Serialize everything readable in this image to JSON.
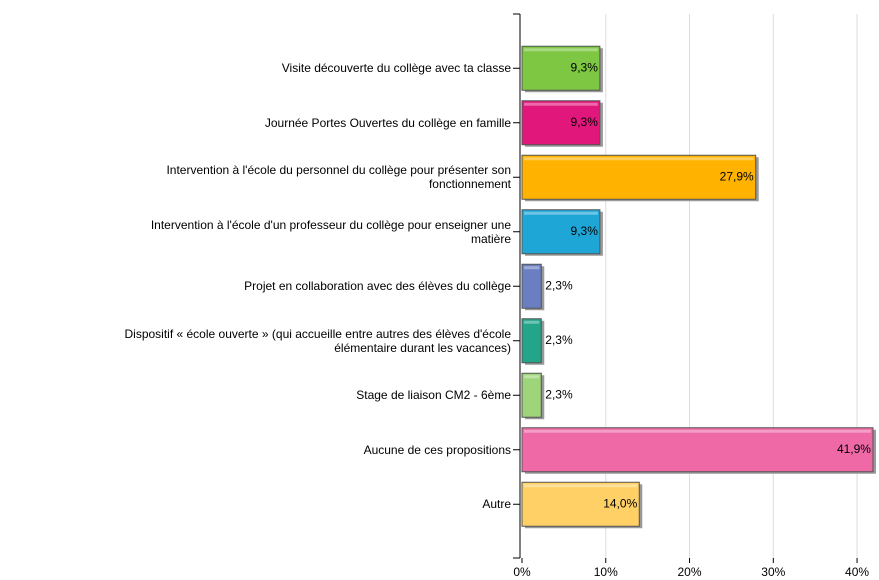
{
  "chart_data": {
    "type": "bar",
    "orientation": "horizontal",
    "categories": [
      "Visite découverte du collège avec ta classe",
      "Journée Portes Ouvertes du collège en famille",
      "Intervention à l'école du personnel du collège pour présenter son\nfonctionnement",
      "Intervention à l'école d'un professeur du collège pour enseigner une\nmatière",
      "Projet en collaboration avec des élèves du collège",
      "Dispositif « école ouverte » (qui  accueille entre autres des élèves d'école\nélémentaire durant les vacances)",
      "Stage de liaison CM2 - 6ème",
      "Aucune de ces propositions",
      "Autre"
    ],
    "values": [
      9.3,
      9.3,
      27.9,
      9.3,
      2.3,
      2.3,
      2.3,
      41.9,
      14.0
    ],
    "value_labels": [
      "9,3%",
      "9,3%",
      "27,9%",
      "9,3%",
      "2,3%",
      "2,3%",
      "2,3%",
      "41,9%",
      "14,0%"
    ],
    "colors": [
      "#7dc742",
      "#e2177c",
      "#ffb300",
      "#1ea6d6",
      "#6a7ec2",
      "#23a58a",
      "#9ed47a",
      "#ee69a6",
      "#ffd066"
    ],
    "xlim": [
      0,
      42.5
    ],
    "xticks": [
      {
        "value": 0,
        "label": "0%"
      },
      {
        "value": 10,
        "label": "10%"
      },
      {
        "value": 20,
        "label": "20%"
      },
      {
        "value": 30,
        "label": "30%"
      },
      {
        "value": 40,
        "label": "40%"
      }
    ],
    "grid": true
  }
}
